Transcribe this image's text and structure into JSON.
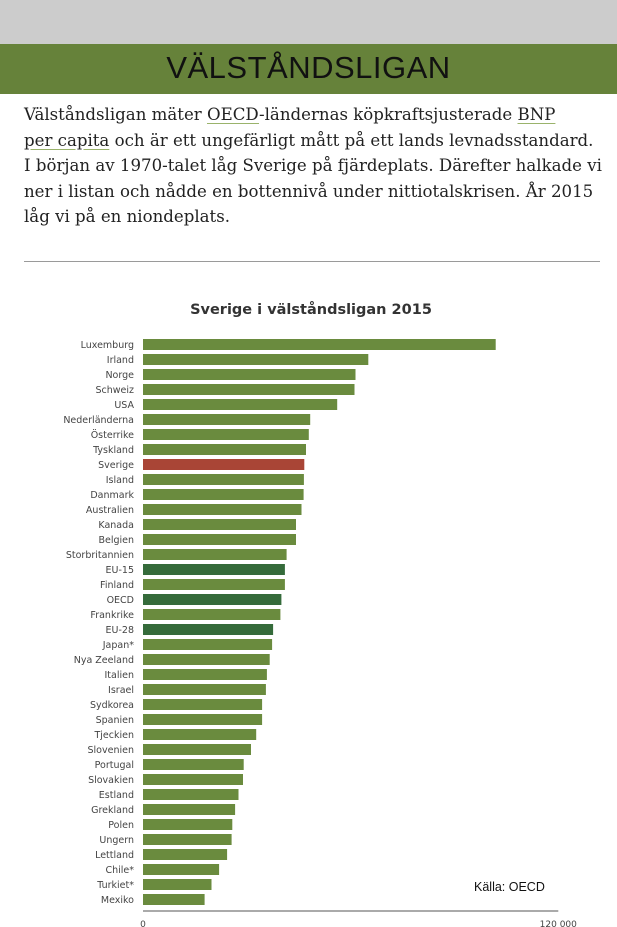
{
  "header": {
    "title": "VÄLSTÅNDSLIGAN"
  },
  "intro": {
    "line1_pre": "Välståndsligan mäter ",
    "link_oecd": "OECD",
    "line1_post": "-ländernas köpkraftsjusterade ",
    "link_bnp": "BNP",
    "link_per_capita": "per capita",
    "line2_post": " och är ett ungefärligt mått på ett lands levnadsstandard.",
    "rest": "I början av 1970-talet låg Sverige på fjärdeplats. Därefter halkade vi ner i listan och nådde en bottennivå under nittiotalskrisen. År 2015 låg vi på en niondeplats."
  },
  "chart_data": {
    "type": "bar",
    "orientation": "horizontal",
    "title": "Sverige i välståndsligan 2015",
    "source": "Källa: OECD",
    "xlim": [
      0,
      120000
    ],
    "xticks": [
      "0",
      "120 000"
    ],
    "grid": false,
    "colors": {
      "default": "#6a8b3e",
      "highlight": "#a94536",
      "aggregate": "#356b3b"
    },
    "categories": [
      "Luxemburg",
      "Irland",
      "Norge",
      "Schweiz",
      "USA",
      "Nederländerna",
      "Österrike",
      "Tyskland",
      "Sverige",
      "Island",
      "Danmark",
      "Australien",
      "Kanada",
      "Belgien",
      "Storbritannien",
      "EU-15",
      "Finland",
      "OECD",
      "Frankrike",
      "EU-28",
      "Japan*",
      "Nya Zeeland",
      "Italien",
      "Israel",
      "Sydkorea",
      "Spanien",
      "Tjeckien",
      "Slovenien",
      "Portugal",
      "Slovakien",
      "Estland",
      "Grekland",
      "Polen",
      "Ungern",
      "Lettland",
      "Chile*",
      "Turkiet*",
      "Mexiko"
    ],
    "values": [
      101900,
      65100,
      61400,
      61100,
      56100,
      48300,
      47900,
      47100,
      46600,
      46500,
      46400,
      45800,
      44200,
      44200,
      41500,
      41000,
      41000,
      40000,
      39700,
      37600,
      37300,
      36600,
      35800,
      35500,
      34400,
      34400,
      32700,
      31200,
      29100,
      28900,
      27600,
      26600,
      25800,
      25600,
      24300,
      22000,
      19800,
      17800
    ],
    "bar_types": [
      "default",
      "default",
      "default",
      "default",
      "default",
      "default",
      "default",
      "default",
      "highlight",
      "default",
      "default",
      "default",
      "default",
      "default",
      "default",
      "aggregate",
      "default",
      "aggregate",
      "default",
      "aggregate",
      "default",
      "default",
      "default",
      "default",
      "default",
      "default",
      "default",
      "default",
      "default",
      "default",
      "default",
      "default",
      "default",
      "default",
      "default",
      "default",
      "default",
      "default"
    ]
  }
}
